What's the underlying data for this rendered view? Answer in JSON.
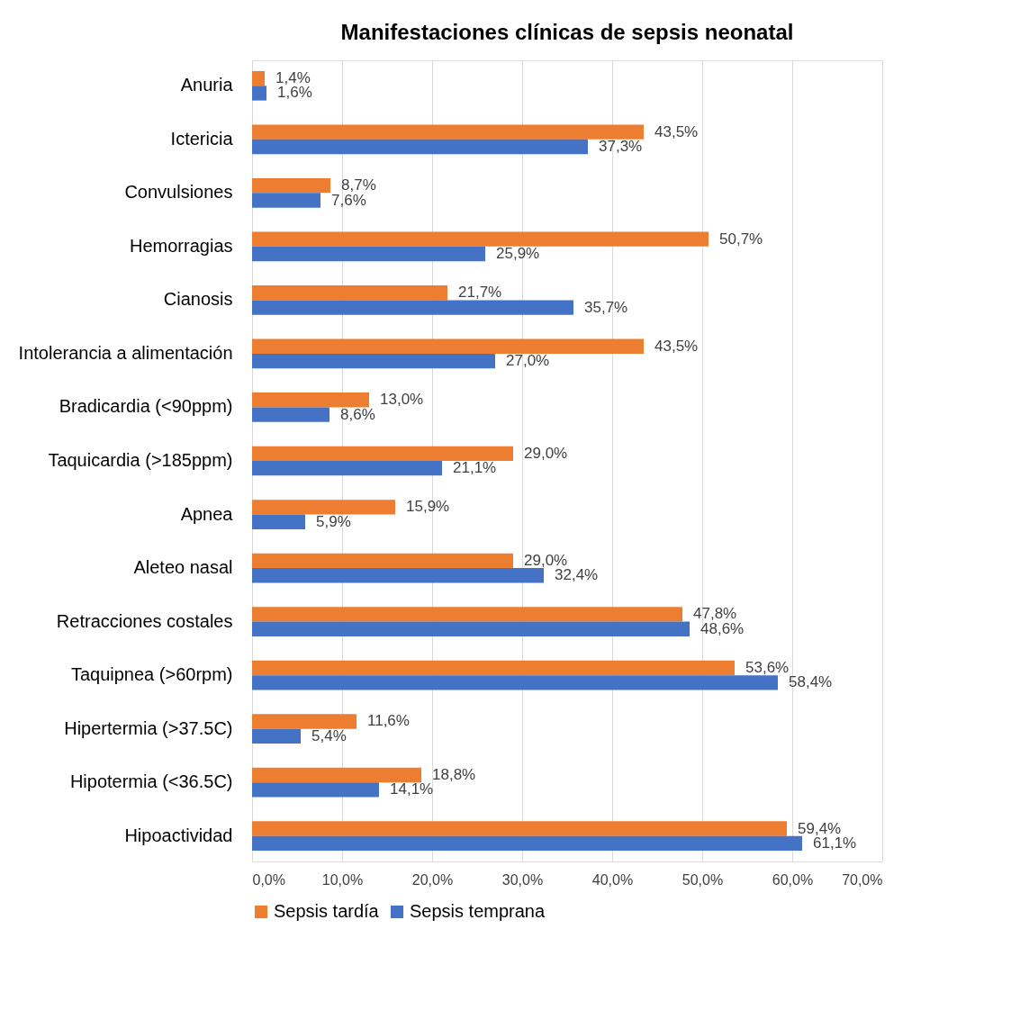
{
  "chart_data": {
    "type": "bar",
    "orientation": "horizontal",
    "title": "Manifestaciones clínicas de sepsis neonatal",
    "categories": [
      "Anuria",
      "Ictericia",
      "Convulsiones",
      "Hemorragias",
      "Cianosis",
      "Intolerancia a alimentación",
      "Bradicardia (<90ppm)",
      "Taquicardia (>185ppm)",
      "Apnea",
      "Aleteo nasal",
      "Retracciones costales",
      "Taquipnea (>60rpm)",
      "Hipertermia (>37.5C)",
      "Hipotermia (<36.5C)",
      "Hipoactividad"
    ],
    "series": [
      {
        "name": "Sepsis tardía",
        "color": "#ed7d31",
        "values": [
          1.4,
          43.5,
          8.7,
          50.7,
          21.7,
          43.5,
          13.0,
          29.0,
          15.9,
          29.0,
          47.8,
          53.6,
          11.6,
          18.8,
          59.4
        ],
        "value_labels": [
          "1,4%",
          "43,5%",
          "8,7%",
          "50,7%",
          "21,7%",
          "43,5%",
          "13,0%",
          "29,0%",
          "15,9%",
          "29,0%",
          "47,8%",
          "53,6%",
          "11,6%",
          "18,8%",
          "59,4%"
        ]
      },
      {
        "name": "Sepsis temprana",
        "color": "#4472c4",
        "values": [
          1.6,
          37.3,
          7.6,
          25.9,
          35.7,
          27.0,
          8.6,
          21.1,
          5.9,
          32.4,
          48.6,
          58.4,
          5.4,
          14.1,
          61.1
        ],
        "value_labels": [
          "1,6%",
          "37,3%",
          "7,6%",
          "25,9%",
          "35,7%",
          "27,0%",
          "8,6%",
          "21,1%",
          "5,9%",
          "32,4%",
          "48,6%",
          "58,4%",
          "5,4%",
          "14,1%",
          "61,1%"
        ]
      }
    ],
    "xlim": [
      0,
      70
    ],
    "xticks": [
      {
        "value": 0,
        "label": "0,0%"
      },
      {
        "value": 10,
        "label": "10,0%"
      },
      {
        "value": 20,
        "label": "20,0%"
      },
      {
        "value": 30,
        "label": "30,0%"
      },
      {
        "value": 40,
        "label": "40,0%"
      },
      {
        "value": 50,
        "label": "50,0%"
      },
      {
        "value": 60,
        "label": "60,0%"
      },
      {
        "value": 70,
        "label": "70,0%"
      }
    ],
    "grid": "x",
    "legend": "bottom"
  }
}
